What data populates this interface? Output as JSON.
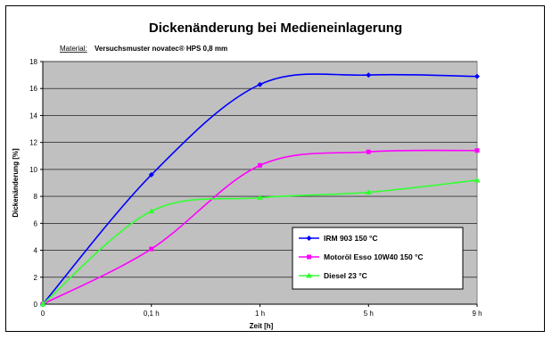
{
  "chart_data": {
    "type": "line",
    "title": "Dickenänderung bei Medieneinlagerung",
    "subtitle_label": "Material:",
    "subtitle_value": "Versuchsmuster novatec® HPS 0,8 mm",
    "xlabel": "Zeit [h]",
    "ylabel": "Dickenänderung [%]",
    "x_ticks": [
      "0",
      "0,1 h",
      "1 h",
      "5 h",
      "9 h"
    ],
    "ylim": [
      0,
      18
    ],
    "y_ticks": [
      0,
      2,
      4,
      6,
      8,
      10,
      12,
      14,
      16,
      18
    ],
    "grid": true,
    "legend_position": "lower-right",
    "series": [
      {
        "name": "IRM 903  150 °C",
        "color": "#0000ff",
        "marker": "diamond",
        "values": [
          0,
          9.6,
          16.3,
          17.0,
          16.9
        ]
      },
      {
        "name": "Motoröl Esso 10W40  150 °C",
        "color": "#ff00ff",
        "marker": "square",
        "values": [
          0,
          4.1,
          10.3,
          11.3,
          11.4
        ]
      },
      {
        "name": "Diesel  23 °C",
        "color": "#33ff33",
        "marker": "triangle",
        "values": [
          0,
          6.9,
          7.9,
          8.3,
          9.2
        ]
      }
    ]
  }
}
